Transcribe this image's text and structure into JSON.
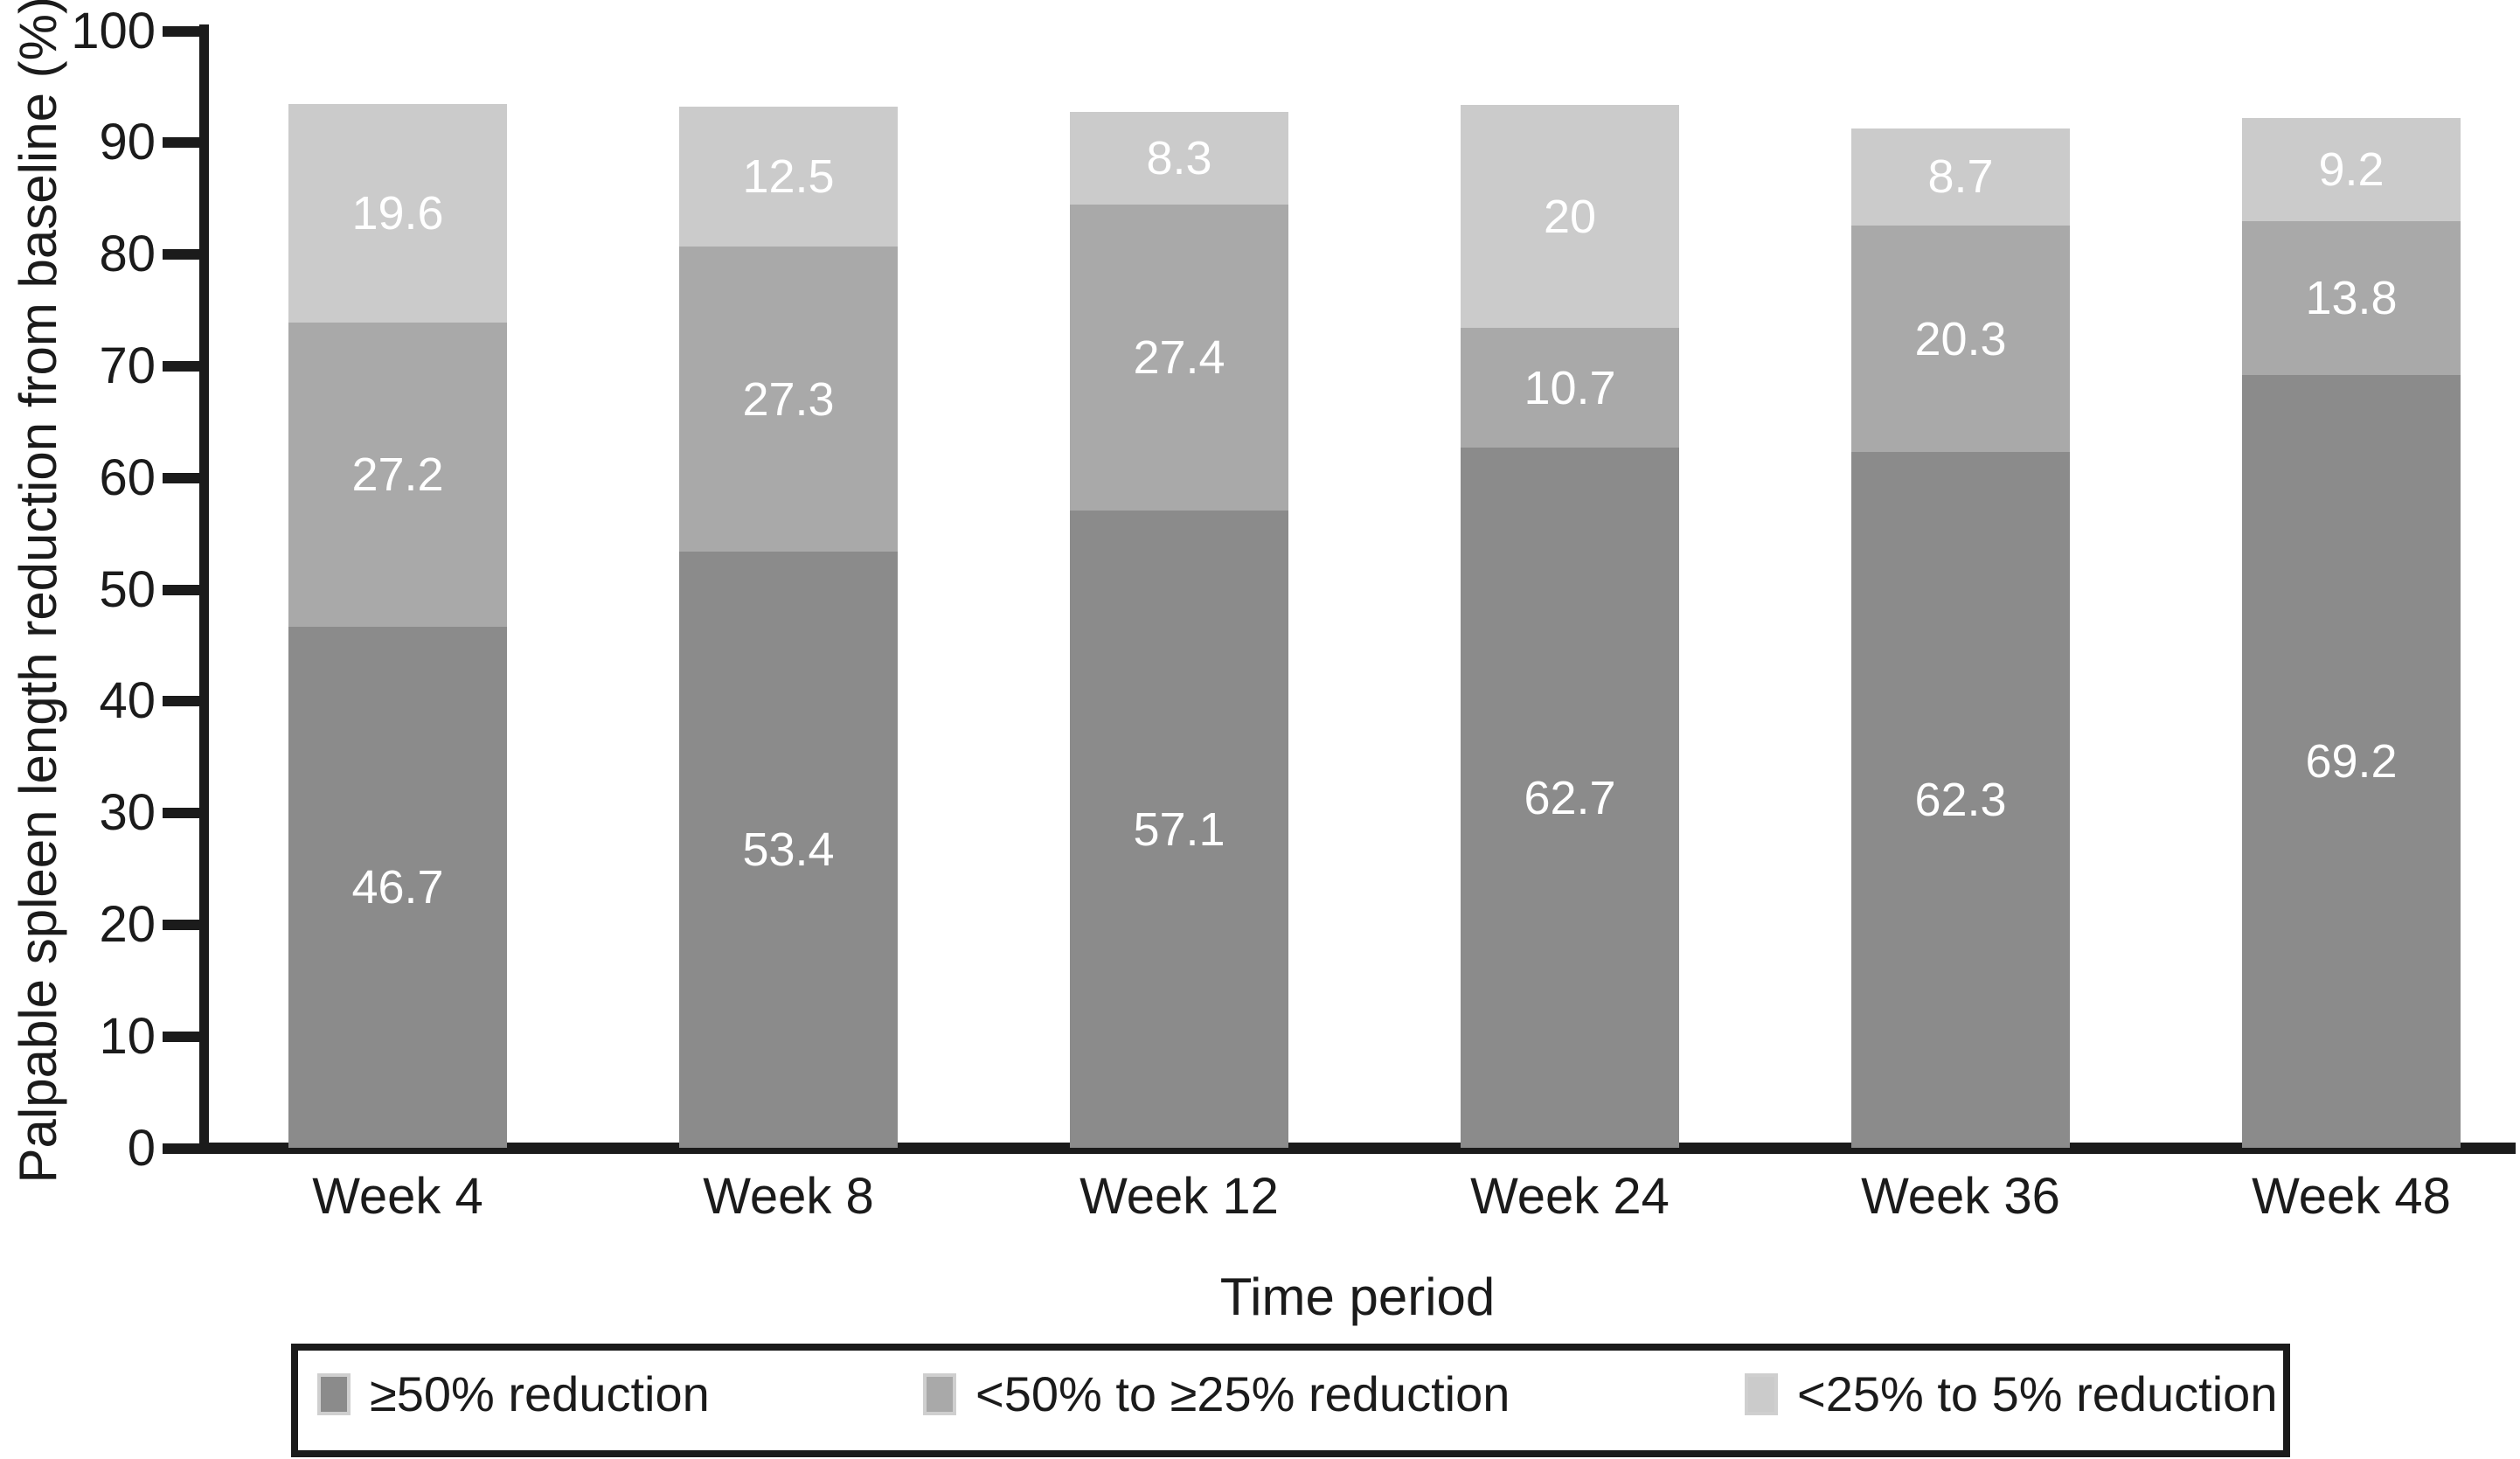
{
  "figure_type": "stacked-bar-chart",
  "colors": {
    "series_dark": "#8b8b8b",
    "series_medium": "#a9a9a9",
    "series_light": "#cbcbcb",
    "axis": "#1b1b1b",
    "bar_value_text": "#ffffff",
    "background": "#ffffff"
  },
  "y_axis": {
    "title": "Palpable spleen length reduction from baseline (%)",
    "tick_labels": [
      "0",
      "10",
      "20",
      "30",
      "40",
      "50",
      "60",
      "70",
      "80",
      "90",
      "100"
    ],
    "min": 0,
    "max": 100
  },
  "x_axis": {
    "title": "Time period",
    "categories": [
      "Week 4",
      "Week 8",
      "Week 12",
      "Week 24",
      "Week 36",
      "Week 48"
    ]
  },
  "legend": {
    "items": [
      {
        "label": "≥50% reduction",
        "color": "#8b8b8b"
      },
      {
        "label": "<50% to ≥25% reduction",
        "color": "#a9a9a9"
      },
      {
        "label": "<25% to 5% reduction",
        "color": "#cbcbcb"
      }
    ]
  },
  "chart_data": {
    "type": "bar",
    "stacked": true,
    "categories": [
      "Week 4",
      "Week 8",
      "Week 12",
      "Week 24",
      "Week 36",
      "Week 48"
    ],
    "series": [
      {
        "name": "≥50% reduction",
        "color": "#8b8b8b",
        "values": [
          46.7,
          53.4,
          57.1,
          62.7,
          62.3,
          69.2
        ],
        "labels": [
          "46.7",
          "53.4",
          "57.1",
          "62.7",
          "62.3",
          "69.2"
        ]
      },
      {
        "name": "<50% to ≥25% reduction",
        "color": "#a9a9a9",
        "values": [
          27.2,
          27.3,
          27.4,
          10.7,
          20.3,
          13.8
        ],
        "labels": [
          "27.2",
          "27.3",
          "27.4",
          "10.7",
          "20.3",
          "13.8"
        ]
      },
      {
        "name": "<25% to 5% reduction",
        "color": "#cbcbcb",
        "values": [
          19.6,
          12.5,
          8.3,
          20,
          8.7,
          9.2
        ],
        "labels": [
          "19.6",
          "12.5",
          "8.3",
          "20",
          "8.7",
          "9.2"
        ]
      }
    ],
    "title": "",
    "xlabel": "Time period",
    "ylabel": "Palpable spleen length reduction from baseline (%)",
    "ylim": [
      0,
      100
    ],
    "grid": false,
    "legend_position": "bottom"
  }
}
